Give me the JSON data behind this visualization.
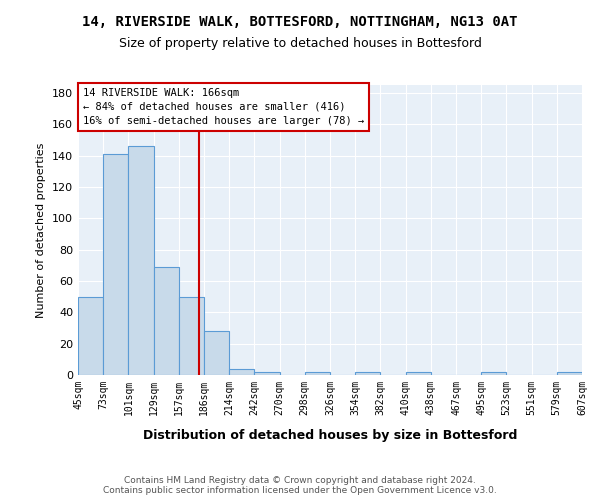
{
  "title": "14, RIVERSIDE WALK, BOTTESFORD, NOTTINGHAM, NG13 0AT",
  "subtitle": "Size of property relative to detached houses in Bottesford",
  "xlabel": "Distribution of detached houses by size in Bottesford",
  "ylabel": "Number of detached properties",
  "bar_values": [
    50,
    141,
    146,
    69,
    50,
    28,
    4,
    2,
    0,
    2,
    0,
    2,
    0,
    2,
    0,
    0,
    2,
    0,
    0,
    2
  ],
  "bar_labels": [
    "45sqm",
    "73sqm",
    "101sqm",
    "129sqm",
    "157sqm",
    "186sqm",
    "214sqm",
    "242sqm",
    "270sqm",
    "298sqm",
    "326sqm",
    "354sqm",
    "382sqm",
    "410sqm",
    "438sqm",
    "467sqm",
    "495sqm",
    "523sqm",
    "551sqm",
    "579sqm",
    "607sqm"
  ],
  "bar_color": "#c8daea",
  "bar_edge_color": "#5b9bd5",
  "vline_color": "#cc0000",
  "annotation_text": "14 RIVERSIDE WALK: 166sqm\n← 84% of detached houses are smaller (416)\n16% of semi-detached houses are larger (78) →",
  "ylim": [
    0,
    185
  ],
  "yticks": [
    0,
    20,
    40,
    60,
    80,
    100,
    120,
    140,
    160,
    180
  ],
  "footer": "Contains HM Land Registry data © Crown copyright and database right 2024.\nContains public sector information licensed under the Open Government Licence v3.0.",
  "plot_bg_color": "#e8f0f8"
}
